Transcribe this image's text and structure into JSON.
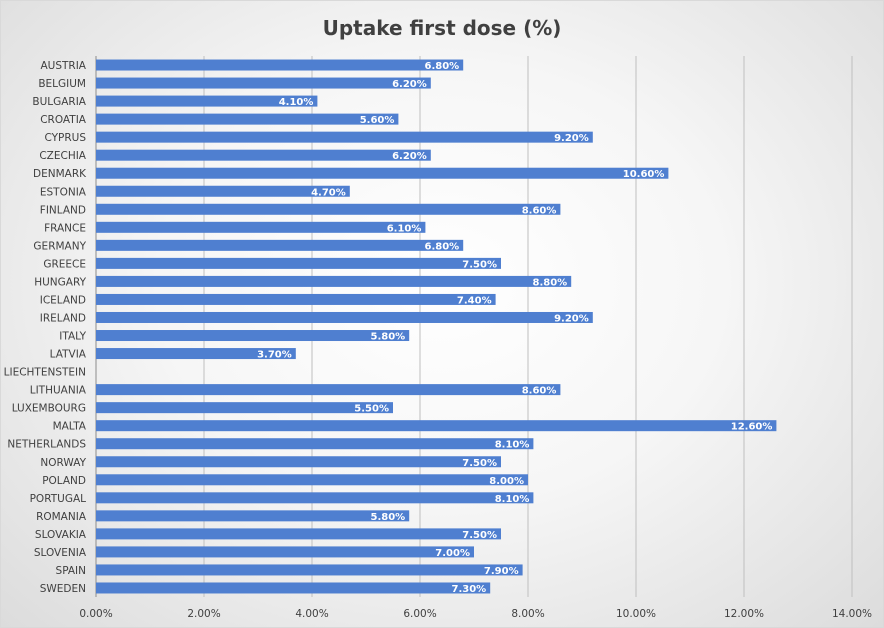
{
  "chart_data": {
    "type": "bar",
    "orientation": "horizontal",
    "title": "Uptake first dose (%)",
    "xlabel": "",
    "ylabel": "",
    "xlim": [
      0,
      14
    ],
    "x_ticks": [
      0,
      2,
      4,
      6,
      8,
      10,
      12,
      14
    ],
    "x_tick_labels": [
      "0.00%",
      "2.00%",
      "4.00%",
      "6.00%",
      "8.00%",
      "10.00%",
      "12.00%",
      "14.00%"
    ],
    "grid": "vertical",
    "bar_color": "#4f7fd0",
    "categories": [
      "AUSTRIA",
      "BELGIUM",
      "BULGARIA",
      "CROATIA",
      "CYPRUS",
      "CZECHIA",
      "DENMARK",
      "ESTONIA",
      "FINLAND",
      "FRANCE",
      "GERMANY",
      "GREECE",
      "HUNGARY",
      "ICELAND",
      "IRELAND",
      "ITALY",
      "LATVIA",
      "LIECHTENSTEIN",
      "LITHUANIA",
      "LUXEMBOURG",
      "MALTA",
      "NETHERLANDS",
      "NORWAY",
      "POLAND",
      "PORTUGAL",
      "ROMANIA",
      "SLOVAKIA",
      "SLOVENIA",
      "SPAIN",
      "SWEDEN"
    ],
    "values": [
      6.8,
      6.2,
      4.1,
      5.6,
      9.2,
      6.2,
      10.6,
      4.7,
      8.6,
      6.1,
      6.8,
      7.5,
      8.8,
      7.4,
      9.2,
      5.8,
      3.7,
      null,
      8.6,
      5.5,
      12.6,
      8.1,
      7.5,
      8.0,
      8.1,
      5.8,
      7.5,
      7.0,
      7.9,
      7.3
    ],
    "value_labels": [
      "6.80%",
      "6.20%",
      "4.10%",
      "5.60%",
      "9.20%",
      "6.20%",
      "10.60%",
      "4.70%",
      "8.60%",
      "6.10%",
      "6.80%",
      "7.50%",
      "8.80%",
      "7.40%",
      "9.20%",
      "5.80%",
      "3.70%",
      "",
      "8.60%",
      "5.50%",
      "12.60%",
      "8.10%",
      "7.50%",
      "8.00%",
      "8.10%",
      "5.80%",
      "7.50%",
      "7.00%",
      "7.90%",
      "7.30%"
    ]
  }
}
